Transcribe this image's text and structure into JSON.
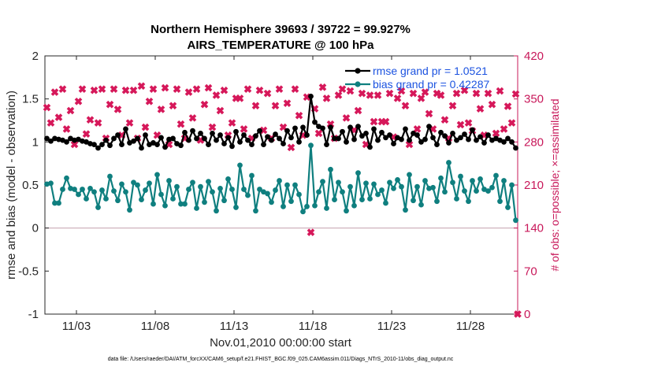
{
  "chart_data": {
    "type": "line",
    "title_line1": "Northern Hemisphere 39693 / 39722 = 99.927%",
    "title_line2": "AIRS_TEMPERATURE @ 100 hPa",
    "xlabel": "Nov.01,2010 00:00:00 start",
    "ylabel": "rmse and bias (model - observation)",
    "ylabel_right": "# of obs: o=possible; ×=assimilated",
    "footer": "data file: /Users/raeder/DAI/ATM_forcXX/CAM6_setup/f.e21.FHIST_BGC.f09_025.CAM6assim.011/Diags_NTrS_2010-11/obs_diag_output.nc",
    "ylim": [
      -1,
      2
    ],
    "ylim_right": [
      0,
      420
    ],
    "xlim": [
      1.0,
      31.0
    ],
    "y_ticks": [
      "-1",
      "-0.5",
      "0",
      "0.5",
      "1",
      "1.5",
      "2"
    ],
    "y_tick_values": [
      -1,
      -0.5,
      0,
      0.5,
      1,
      1.5,
      2
    ],
    "y_right_ticks": [
      "0",
      "70",
      "140",
      "210",
      "280",
      "350",
      "420"
    ],
    "y_right_tick_values": [
      0,
      70,
      140,
      210,
      280,
      350,
      420
    ],
    "x_ticks": [
      "11/03",
      "11/08",
      "11/13",
      "11/18",
      "11/23",
      "11/28"
    ],
    "x_tick_values": [
      3,
      8,
      13,
      18,
      23,
      28
    ],
    "legend": {
      "rmse_label": "rmse grand pr = 1.0521",
      "bias_label": "bias grand pr = 0.42287",
      "position": "top-right"
    },
    "colors": {
      "rmse": "#000000",
      "bias": "#0f7f7f",
      "obs": "#d6185a",
      "zero_line": "#c9a9b6",
      "right_axis": "#c8185a",
      "legend_text": "#1c53e0"
    },
    "series": [
      {
        "name": "rmse",
        "x": [
          1.125,
          1.375,
          1.625,
          1.875,
          2.125,
          2.375,
          2.625,
          2.875,
          3.125,
          3.375,
          3.625,
          3.875,
          4.125,
          4.375,
          4.625,
          4.875,
          5.125,
          5.375,
          5.625,
          5.875,
          6.125,
          6.375,
          6.625,
          6.875,
          7.125,
          7.375,
          7.625,
          7.875,
          8.125,
          8.375,
          8.625,
          8.875,
          9.125,
          9.375,
          9.625,
          9.875,
          10.125,
          10.375,
          10.625,
          10.875,
          11.125,
          11.375,
          11.625,
          11.875,
          12.125,
          12.375,
          12.625,
          12.875,
          13.125,
          13.375,
          13.625,
          13.875,
          14.125,
          14.375,
          14.625,
          14.875,
          15.125,
          15.375,
          15.625,
          15.875,
          16.125,
          16.375,
          16.625,
          16.875,
          17.125,
          17.375,
          17.625,
          17.875,
          18.125,
          18.375,
          18.625,
          18.875,
          19.125,
          19.375,
          19.625,
          19.875,
          20.125,
          20.375,
          20.625,
          20.875,
          21.125,
          21.375,
          21.625,
          21.875,
          22.125,
          22.375,
          22.625,
          22.875,
          23.125,
          23.375,
          23.625,
          23.875,
          24.125,
          24.375,
          24.625,
          24.875,
          25.125,
          25.375,
          25.625,
          25.875,
          26.125,
          26.375,
          26.625,
          26.875,
          27.125,
          27.375,
          27.625,
          27.875,
          28.125,
          28.375,
          28.625,
          28.875,
          29.125,
          29.375,
          29.625,
          29.875,
          30.125,
          30.375,
          30.625,
          30.875
        ],
        "values": [
          1.04,
          1.01,
          1.04,
          1.03,
          1.02,
          1.0,
          1.04,
          1.02,
          1.03,
          1.01,
          1.0,
          0.98,
          0.97,
          0.93,
          0.97,
          1.02,
          0.96,
          1.04,
          1.08,
          0.97,
          1.15,
          0.99,
          1.01,
          1.04,
          0.93,
          1.08,
          0.97,
          0.99,
          0.97,
          1.05,
          0.94,
          1.03,
          1.04,
          0.98,
          0.96,
          1.11,
          1.02,
          1.13,
          1.04,
          1.1,
          1.04,
          0.97,
          1.1,
          1.02,
          1.08,
          0.98,
          1.05,
          0.95,
          1.12,
          1.0,
          1.08,
          1.02,
          0.97,
          1.07,
          1.13,
          0.97,
          1.06,
          1.02,
          1.09,
          1.04,
          0.98,
          1.13,
          1.05,
          1.16,
          1.0,
          1.17,
          1.08,
          1.53,
          1.23,
          1.18,
          1.16,
          0.97,
          1.17,
          1.04,
          1.04,
          1.12,
          1.0,
          1.17,
          1.03,
          1.18,
          1.07,
          1.1,
          0.94,
          1.15,
          1.02,
          1.11,
          1.05,
          1.08,
          0.98,
          1.05,
          1.03,
          1.15,
          1.02,
          1.1,
          1.08,
          1.0,
          1.03,
          1.18,
          1.05,
          0.97,
          1.11,
          1.07,
          0.99,
          1.1,
          1.02,
          1.05,
          1.09,
          1.03,
          1.14,
          1.02,
          1.06,
          0.99,
          1.08,
          1.02,
          1.04,
          1.02,
          1.0,
          1.04,
          1.0,
          0.93
        ]
      },
      {
        "name": "bias",
        "x": [
          1.125,
          1.375,
          1.625,
          1.875,
          2.125,
          2.375,
          2.625,
          2.875,
          3.125,
          3.375,
          3.625,
          3.875,
          4.125,
          4.375,
          4.625,
          4.875,
          5.125,
          5.375,
          5.625,
          5.875,
          6.125,
          6.375,
          6.625,
          6.875,
          7.125,
          7.375,
          7.625,
          7.875,
          8.125,
          8.375,
          8.625,
          8.875,
          9.125,
          9.375,
          9.625,
          9.875,
          10.125,
          10.375,
          10.625,
          10.875,
          11.125,
          11.375,
          11.625,
          11.875,
          12.125,
          12.375,
          12.625,
          12.875,
          13.125,
          13.375,
          13.625,
          13.875,
          14.125,
          14.375,
          14.625,
          14.875,
          15.125,
          15.375,
          15.625,
          15.875,
          16.125,
          16.375,
          16.625,
          16.875,
          17.125,
          17.375,
          17.625,
          17.875,
          18.125,
          18.375,
          18.625,
          18.875,
          19.125,
          19.375,
          19.625,
          19.875,
          20.125,
          20.375,
          20.625,
          20.875,
          21.125,
          21.375,
          21.625,
          21.875,
          22.125,
          22.375,
          22.625,
          22.875,
          23.125,
          23.375,
          23.625,
          23.875,
          24.125,
          24.375,
          24.625,
          24.875,
          25.125,
          25.375,
          25.625,
          25.875,
          26.125,
          26.375,
          26.625,
          26.875,
          27.125,
          27.375,
          27.625,
          27.875,
          28.125,
          28.375,
          28.625,
          28.875,
          29.125,
          29.375,
          29.625,
          29.875,
          30.125,
          30.375,
          30.625,
          30.875
        ],
        "values": [
          0.51,
          0.52,
          0.29,
          0.29,
          0.45,
          0.58,
          0.46,
          0.45,
          0.39,
          0.45,
          0.34,
          0.46,
          0.42,
          0.24,
          0.44,
          0.34,
          0.6,
          0.43,
          0.32,
          0.51,
          0.42,
          0.21,
          0.53,
          0.5,
          0.33,
          0.44,
          0.52,
          0.28,
          0.62,
          0.39,
          0.26,
          0.55,
          0.34,
          0.48,
          0.28,
          0.28,
          0.45,
          0.53,
          0.23,
          0.48,
          0.3,
          0.54,
          0.42,
          0.2,
          0.46,
          0.32,
          0.57,
          0.45,
          0.24,
          0.73,
          0.45,
          0.38,
          0.61,
          0.2,
          0.45,
          0.42,
          0.4,
          0.3,
          0.44,
          0.55,
          0.25,
          0.5,
          0.31,
          0.5,
          0.39,
          0.19,
          0.25,
          0.96,
          0.26,
          0.42,
          0.54,
          0.23,
          0.68,
          0.33,
          0.53,
          0.42,
          0.2,
          0.48,
          0.26,
          0.64,
          0.33,
          0.52,
          0.34,
          0.51,
          0.39,
          0.44,
          0.29,
          0.53,
          0.46,
          0.56,
          0.48,
          0.21,
          0.62,
          0.32,
          0.48,
          0.27,
          0.55,
          0.46,
          0.47,
          0.31,
          0.58,
          0.42,
          0.76,
          0.53,
          0.34,
          0.6,
          0.43,
          0.31,
          0.55,
          0.43,
          0.57,
          0.45,
          0.43,
          0.47,
          0.61,
          0.31,
          0.55,
          0.24,
          0.5,
          0.09
        ]
      },
      {
        "name": "obs_count",
        "axis": "right",
        "x": [
          1.125,
          1.375,
          1.625,
          1.875,
          2.125,
          2.375,
          2.625,
          2.875,
          3.125,
          3.375,
          3.625,
          3.875,
          4.125,
          4.375,
          4.625,
          4.875,
          5.125,
          5.375,
          5.625,
          5.875,
          6.125,
          6.375,
          6.625,
          6.875,
          7.125,
          7.375,
          7.625,
          7.875,
          8.125,
          8.375,
          8.625,
          8.875,
          9.125,
          9.375,
          9.625,
          9.875,
          10.125,
          10.375,
          10.625,
          10.875,
          11.125,
          11.375,
          11.625,
          11.875,
          12.125,
          12.375,
          12.625,
          12.875,
          13.125,
          13.375,
          13.625,
          13.875,
          14.125,
          14.375,
          14.625,
          14.875,
          15.125,
          15.375,
          15.625,
          15.875,
          16.125,
          16.375,
          16.625,
          16.875,
          17.125,
          17.375,
          17.625,
          17.875,
          18.125,
          18.375,
          18.625,
          18.875,
          19.125,
          19.375,
          19.625,
          19.875,
          20.125,
          20.375,
          20.625,
          20.875,
          21.125,
          21.375,
          21.625,
          21.875,
          22.125,
          22.375,
          22.625,
          22.875,
          23.125,
          23.375,
          23.625,
          23.875,
          24.125,
          24.375,
          24.625,
          24.875,
          25.125,
          25.375,
          25.625,
          25.875,
          26.125,
          26.375,
          26.625,
          26.875,
          27.125,
          27.375,
          27.625,
          27.875,
          28.125,
          28.375,
          28.625,
          28.875,
          29.125,
          29.375,
          29.625,
          29.875,
          30.125,
          30.375,
          30.625,
          30.875,
          31.0
        ],
        "values": [
          336,
          311,
          361,
          320,
          366,
          301,
          331,
          276,
          346,
          366,
          293,
          316,
          364,
          311,
          366,
          286,
          341,
          366,
          333,
          291,
          364,
          311,
          364,
          286,
          371,
          304,
          346,
          366,
          291,
          333,
          368,
          276,
          339,
          366,
          309,
          286,
          361,
          319,
          366,
          283,
          341,
          368,
          304,
          356,
          331,
          364,
          291,
          311,
          351,
          351,
          301,
          366,
          286,
          339,
          364,
          299,
          359,
          286,
          339,
          366,
          304,
          343,
          271,
          366,
          323,
          291,
          353,
          133,
          334,
          294,
          369,
          351,
          309,
          286,
          356,
          366,
          319,
          363,
          299,
          331,
          359,
          276,
          356,
          313,
          356,
          313,
          313,
          359,
          288,
          351,
          363,
          339,
          276,
          359,
          301,
          351,
          361,
          326,
          301,
          359,
          356,
          316,
          286,
          339,
          359,
          308,
          364,
          311,
          298,
          359,
          334,
          291,
          359,
          341,
          294,
          363,
          301,
          338,
          311,
          358,
          0
        ]
      }
    ]
  }
}
